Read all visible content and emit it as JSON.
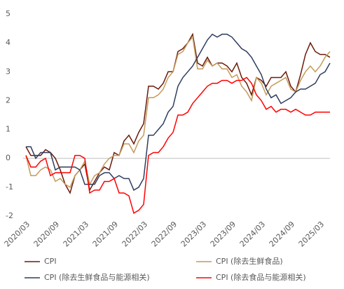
{
  "chart_data": {
    "type": "line",
    "categories": [
      "2020/03",
      null,
      null,
      null,
      null,
      null,
      "2020/09",
      null,
      null,
      null,
      null,
      null,
      "2021/03",
      null,
      null,
      null,
      null,
      null,
      "2021/09",
      null,
      null,
      null,
      null,
      null,
      "2022/03",
      null,
      null,
      null,
      null,
      null,
      "2022/09",
      null,
      null,
      null,
      null,
      null,
      "2023/03",
      null,
      null,
      null,
      null,
      null,
      "2023/09",
      null,
      null,
      null,
      null,
      null,
      "2024/03",
      null,
      null,
      null,
      null,
      null,
      "2024/09",
      null,
      null,
      null,
      null,
      null,
      "2025/03",
      null,
      null
    ],
    "series": [
      {
        "name": "CPI",
        "color": "#6b1a0a",
        "values": [
          0.4,
          0.1,
          0.1,
          0.1,
          0.3,
          0.2,
          0.0,
          -0.4,
          -0.9,
          -1.2,
          -0.6,
          -0.4,
          -0.2,
          -1.1,
          -0.8,
          -0.5,
          -0.3,
          -0.4,
          0.2,
          0.1,
          0.6,
          0.8,
          0.5,
          0.9,
          1.2,
          2.5,
          2.5,
          2.4,
          2.6,
          3.0,
          3.0,
          3.7,
          3.8,
          4.0,
          4.3,
          3.3,
          3.2,
          3.5,
          3.2,
          3.3,
          3.3,
          3.2,
          3.0,
          3.3,
          2.8,
          2.6,
          2.2,
          2.8,
          2.7,
          2.5,
          2.8,
          2.8,
          2.8,
          3.0,
          2.5,
          2.3,
          2.9,
          3.6,
          4.0,
          3.7,
          3.6,
          3.6,
          3.5
        ]
      },
      {
        "name": "CPI (除去生鲜食品)",
        "color": "#c49a5a",
        "values": [
          0.1,
          -0.6,
          -0.6,
          -0.4,
          -0.3,
          -0.4,
          -0.8,
          -0.7,
          -0.9,
          -1.0,
          -0.6,
          -0.4,
          -0.1,
          -0.9,
          -0.6,
          -0.5,
          -0.2,
          0.0,
          0.1,
          0.1,
          0.5,
          0.5,
          0.2,
          0.6,
          0.8,
          2.1,
          2.1,
          2.2,
          2.4,
          2.8,
          3.0,
          3.6,
          3.7,
          4.0,
          4.2,
          3.1,
          3.1,
          3.4,
          3.2,
          3.3,
          3.1,
          3.1,
          2.8,
          2.9,
          2.5,
          2.3,
          2.0,
          2.8,
          2.6,
          2.2,
          2.5,
          2.6,
          2.7,
          2.8,
          2.4,
          2.3,
          2.7,
          3.0,
          3.2,
          3.0,
          3.2,
          3.5,
          3.7
        ]
      },
      {
        "name": "CPI (除去生鲜食品与能源相关)",
        "color": "#2f3d5e",
        "values": [
          0.4,
          0.4,
          0.0,
          0.2,
          0.2,
          0.2,
          -0.4,
          -0.3,
          -0.3,
          -0.3,
          -0.3,
          -0.4,
          -0.9,
          -0.9,
          -0.9,
          -0.6,
          -0.5,
          -0.5,
          -0.7,
          -0.6,
          -0.7,
          -0.7,
          -1.1,
          -1.0,
          -0.7,
          0.8,
          0.8,
          1.0,
          1.2,
          1.6,
          1.8,
          2.5,
          2.8,
          3.0,
          3.2,
          3.5,
          3.8,
          4.1,
          4.3,
          4.2,
          4.3,
          4.3,
          4.2,
          4.0,
          3.8,
          3.7,
          3.5,
          3.2,
          2.9,
          2.4,
          2.1,
          2.2,
          1.9,
          2.0,
          2.1,
          2.3,
          2.4,
          2.4,
          2.5,
          2.6,
          2.9,
          3.0,
          3.3
        ]
      },
      {
        "name": "CPI (除去食品与能源相关)",
        "color": "#ff0000",
        "values": [
          0.1,
          -0.3,
          -0.3,
          -0.1,
          0.0,
          -0.6,
          -0.5,
          -0.5,
          -0.5,
          -0.5,
          0.1,
          0.1,
          0.0,
          -1.2,
          -1.1,
          -1.1,
          -0.8,
          -0.8,
          -0.7,
          -1.2,
          -1.2,
          -1.3,
          -1.9,
          -1.8,
          -1.6,
          0.1,
          0.2,
          0.2,
          0.4,
          0.7,
          0.9,
          1.5,
          1.5,
          1.6,
          1.9,
          2.1,
          2.3,
          2.5,
          2.6,
          2.6,
          2.7,
          2.7,
          2.6,
          2.7,
          2.7,
          2.8,
          2.6,
          2.2,
          2.0,
          1.7,
          1.8,
          1.6,
          1.7,
          1.7,
          1.6,
          1.7,
          1.6,
          1.5,
          1.5,
          1.6,
          1.6,
          1.6,
          1.6
        ]
      }
    ],
    "ylim": [
      -2,
      5
    ],
    "yticks": [
      -2,
      -1,
      0,
      1,
      2,
      3,
      4,
      5
    ],
    "grid": false
  }
}
